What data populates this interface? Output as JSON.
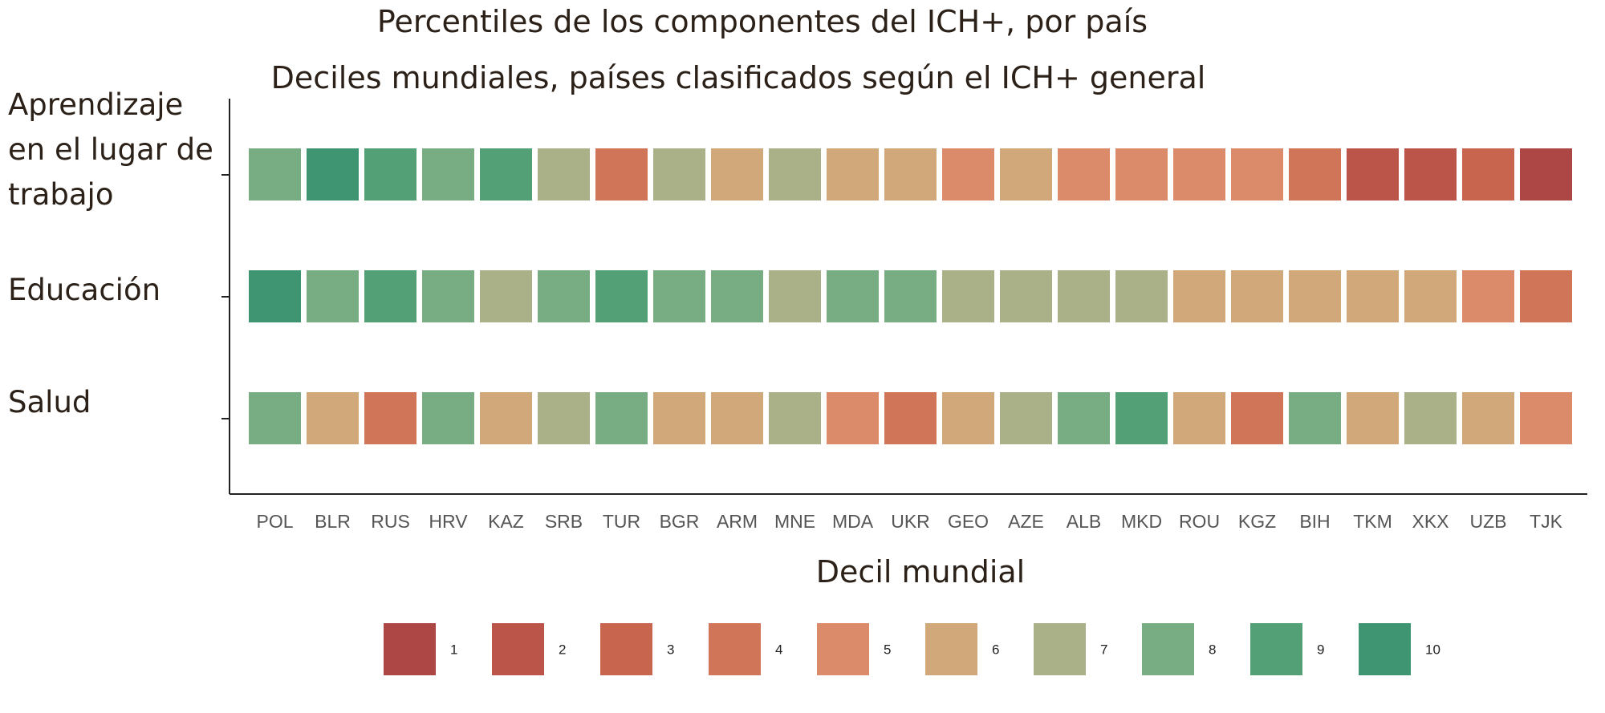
{
  "chart_data": {
    "type": "heatmap",
    "title": "Percentiles de los componentes del ICH+, por país",
    "subtitle": "Deciles mundiales, países clasificados según el ICH+ general",
    "legend_title": "Decil mundial",
    "legend_position": "bottom",
    "grid": false,
    "categories": [
      "POL",
      "BLR",
      "RUS",
      "HRV",
      "KAZ",
      "SRB",
      "TUR",
      "BGR",
      "ARM",
      "MNE",
      "MDA",
      "UKR",
      "GEO",
      "AZE",
      "ALB",
      "MKD",
      "ROU",
      "KGZ",
      "BIH",
      "TKM",
      "XKX",
      "UZB",
      "TJK"
    ],
    "rows": [
      {
        "label_lines": [
          "Aprendizaje",
          "en el lugar de",
          "trabajo"
        ],
        "values": [
          8,
          10,
          9,
          8,
          9,
          7,
          4,
          7,
          6,
          7,
          6,
          6,
          5,
          6,
          5,
          5,
          5,
          5,
          4,
          2,
          2,
          3,
          1
        ]
      },
      {
        "label_lines": [
          "Educación"
        ],
        "values": [
          10,
          8,
          9,
          8,
          7,
          8,
          9,
          8,
          8,
          7,
          8,
          8,
          7,
          7,
          7,
          7,
          6,
          6,
          6,
          6,
          6,
          5,
          4
        ]
      },
      {
        "label_lines": [
          "Salud"
        ],
        "values": [
          8,
          6,
          4,
          8,
          6,
          7,
          8,
          6,
          6,
          7,
          5,
          4,
          6,
          7,
          8,
          9,
          6,
          4,
          8,
          6,
          7,
          6,
          5
        ]
      }
    ],
    "legend": [
      {
        "value": 1,
        "label": "1"
      },
      {
        "value": 2,
        "label": "2"
      },
      {
        "value": 3,
        "label": "3"
      },
      {
        "value": 4,
        "label": "4"
      },
      {
        "value": 5,
        "label": "5"
      },
      {
        "value": 6,
        "label": "6"
      },
      {
        "value": 7,
        "label": "7"
      },
      {
        "value": 8,
        "label": "8"
      },
      {
        "value": 9,
        "label": "9"
      },
      {
        "value": 10,
        "label": "10"
      }
    ],
    "colors": {
      "1": "#ad4745",
      "2": "#bb5449",
      "3": "#c8654f",
      "4": "#d07558",
      "5": "#db8b69",
      "6": "#d1a87a",
      "7": "#aab087",
      "8": "#78ac82",
      "9": "#54a076",
      "10": "#3f9471"
    }
  }
}
